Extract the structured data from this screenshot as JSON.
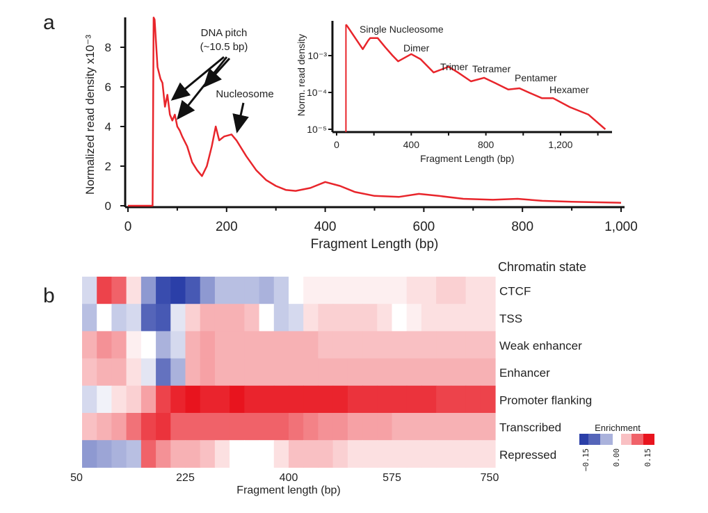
{
  "chart_data": [
    {
      "panel": "a",
      "type": "line",
      "xlabel": "Fragment Length (bp)",
      "ylabel": "Normalized read density x10⁻³",
      "xlim": [
        0,
        1000
      ],
      "ylim": [
        0,
        9.5
      ],
      "xticks": [
        0,
        200,
        400,
        600,
        800,
        1000
      ],
      "xtick_labels": [
        "0",
        "200",
        "400",
        "600",
        "800",
        "1,000"
      ],
      "yticks": [
        0,
        2,
        4,
        6,
        8
      ],
      "color": "#e8252b",
      "annotations": [
        "DNA pitch",
        "(~10.5 bp)",
        "Nucleosome"
      ],
      "x": [
        0,
        50,
        52,
        54,
        60,
        66,
        70,
        75,
        80,
        85,
        90,
        95,
        100,
        105,
        110,
        120,
        130,
        140,
        150,
        160,
        170,
        178,
        185,
        195,
        210,
        220,
        240,
        260,
        280,
        300,
        320,
        340,
        370,
        400,
        430,
        460,
        500,
        550,
        590,
        630,
        680,
        740,
        790,
        840,
        900,
        1000
      ],
      "y": [
        0,
        0,
        9.5,
        9.4,
        7.0,
        6.4,
        6.2,
        5.0,
        5.6,
        4.6,
        4.3,
        4.6,
        4.0,
        3.8,
        3.5,
        3.0,
        2.2,
        1.8,
        1.5,
        2.0,
        3.0,
        4.0,
        3.3,
        3.5,
        3.6,
        3.3,
        2.5,
        1.8,
        1.3,
        1.0,
        0.8,
        0.75,
        0.9,
        1.2,
        1.0,
        0.7,
        0.5,
        0.45,
        0.6,
        0.5,
        0.35,
        0.3,
        0.35,
        0.25,
        0.2,
        0.15
      ]
    },
    {
      "panel": "a-inset",
      "type": "line",
      "xlabel": "Fragment Length (bp)",
      "ylabel": "Norm. read density",
      "yscale": "log",
      "xlim": [
        0,
        1500
      ],
      "ylim": [
        1e-05,
        0.008
      ],
      "xticks": [
        0,
        400,
        800,
        1200
      ],
      "xtick_labels": [
        "0",
        "400",
        "800",
        "1,200"
      ],
      "ytick_labels": [
        "10⁻³",
        "10⁻⁴",
        "10⁻⁵"
      ],
      "color": "#e8252b",
      "annotations": [
        "Single Nucleosome",
        "Dimer",
        "Trimer",
        "Tetramer",
        "Pentamer",
        "Hexamer"
      ],
      "x": [
        50,
        60,
        100,
        140,
        170,
        180,
        220,
        260,
        300,
        330,
        400,
        450,
        520,
        600,
        650,
        720,
        790,
        850,
        920,
        980,
        1050,
        1100,
        1160,
        1250,
        1350,
        1440
      ],
      "y": [
        0.007,
        0.006,
        0.003,
        0.0015,
        0.0026,
        0.003,
        0.003,
        0.0017,
        0.001,
        0.0007,
        0.0011,
        0.0008,
        0.00035,
        0.0005,
        0.00035,
        0.0002,
        0.00025,
        0.00018,
        0.00012,
        0.00013,
        9e-05,
        7e-05,
        7e-05,
        4e-05,
        2.5e-05,
        1e-05
      ]
    },
    {
      "panel": "b",
      "type": "heatmap",
      "xlabel": "Fragment length (bp)",
      "xlim": [
        50,
        750
      ],
      "xticks": [
        50,
        225,
        400,
        575,
        750
      ],
      "xtick_labels": [
        "50",
        "225",
        "400",
        "575",
        "750"
      ],
      "row_header": "Chromatin state",
      "colorbar": {
        "title": "Enrichment",
        "min": -0.15,
        "max": 0.15,
        "tick_labels": [
          "−0.15",
          "0.00",
          "0.15"
        ],
        "low_color": "#2b3fa8",
        "high_color": "#e8141e"
      },
      "bin_width": 25,
      "rows": [
        {
          "label": "CTCF",
          "values": [
            -0.03,
            0.12,
            0.1,
            0.02,
            -0.08,
            -0.14,
            -0.15,
            -0.13,
            -0.08,
            -0.05,
            -0.05,
            -0.05,
            -0.06,
            -0.04,
            0.0,
            0.01,
            0.01,
            0.01,
            0.01,
            0.01,
            0.01,
            0.01,
            0.02,
            0.02,
            0.03,
            0.03,
            0.02,
            0.02
          ]
        },
        {
          "label": "TSS",
          "values": [
            -0.05,
            0.0,
            -0.04,
            -0.03,
            -0.12,
            -0.13,
            -0.02,
            0.03,
            0.05,
            0.05,
            0.05,
            0.04,
            0.0,
            -0.04,
            -0.03,
            0.02,
            0.03,
            0.03,
            0.03,
            0.03,
            0.02,
            0.0,
            0.01,
            0.02,
            0.02,
            0.02,
            0.02,
            0.02
          ]
        },
        {
          "label": "Weak enhancer",
          "values": [
            0.05,
            0.07,
            0.06,
            0.01,
            0.0,
            -0.06,
            -0.03,
            0.05,
            0.06,
            0.05,
            0.05,
            0.05,
            0.05,
            0.05,
            0.05,
            0.05,
            0.04,
            0.04,
            0.04,
            0.04,
            0.04,
            0.04,
            0.04,
            0.04,
            0.04,
            0.04,
            0.04,
            0.04
          ]
        },
        {
          "label": "Enhancer",
          "values": [
            0.04,
            0.05,
            0.05,
            0.02,
            -0.02,
            -0.11,
            -0.06,
            0.05,
            0.06,
            0.05,
            0.05,
            0.05,
            0.05,
            0.05,
            0.05,
            0.05,
            0.05,
            0.05,
            0.05,
            0.05,
            0.05,
            0.05,
            0.05,
            0.05,
            0.05,
            0.05,
            0.05,
            0.05
          ]
        },
        {
          "label": "Promoter flanking",
          "values": [
            -0.03,
            -0.01,
            0.02,
            0.03,
            0.06,
            0.12,
            0.14,
            0.15,
            0.14,
            0.14,
            0.15,
            0.14,
            0.14,
            0.14,
            0.14,
            0.14,
            0.14,
            0.14,
            0.13,
            0.13,
            0.13,
            0.13,
            0.13,
            0.13,
            0.12,
            0.12,
            0.12,
            0.12
          ]
        },
        {
          "label": "Transcribed",
          "values": [
            0.04,
            0.05,
            0.06,
            0.09,
            0.12,
            0.13,
            0.1,
            0.1,
            0.1,
            0.1,
            0.1,
            0.1,
            0.1,
            0.1,
            0.09,
            0.08,
            0.07,
            0.07,
            0.06,
            0.06,
            0.06,
            0.05,
            0.05,
            0.05,
            0.05,
            0.05,
            0.05,
            0.05
          ]
        },
        {
          "label": "Repressed",
          "values": [
            -0.08,
            -0.07,
            -0.06,
            -0.05,
            0.1,
            0.07,
            0.05,
            0.05,
            0.04,
            0.02,
            0.0,
            0.0,
            0.0,
            0.02,
            0.04,
            0.04,
            0.04,
            0.03,
            0.02,
            0.02,
            0.02,
            0.02,
            0.02,
            0.02,
            0.02,
            0.02,
            0.02,
            0.02
          ]
        }
      ]
    }
  ],
  "panel_labels": [
    "a",
    "b"
  ]
}
